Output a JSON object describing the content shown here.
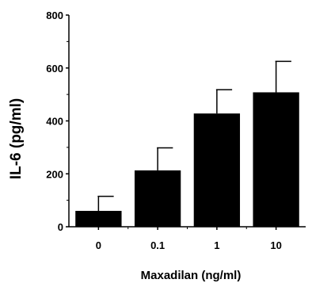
{
  "chart_data": {
    "type": "bar",
    "categories": [
      "0",
      "0.1",
      "1",
      "10"
    ],
    "values": [
      60,
      213,
      428,
      508
    ],
    "error_upper": [
      115,
      298,
      518,
      625
    ],
    "xlabel": "Maxadilan (ng/ml)",
    "ylabel": "IL-6 (pg/ml)",
    "ylim": [
      0,
      800
    ],
    "yticks": [
      0,
      200,
      400,
      600,
      800
    ],
    "bar_color": "#000000",
    "grid": false,
    "legend": "none"
  }
}
